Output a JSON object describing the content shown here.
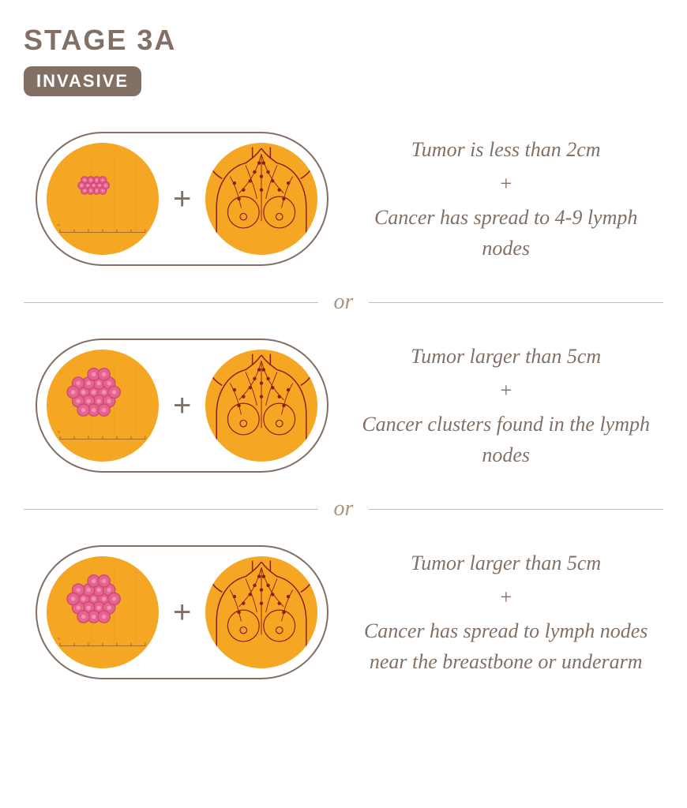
{
  "colors": {
    "title": "#827065",
    "badge_bg": "#827065",
    "badge_text": "#ffffff",
    "capsule_border": "#827065",
    "circle_bg": "#f5a623",
    "circle_bg_alt": "#f5a623",
    "cell_fill": "#e8648f",
    "cell_stroke": "#c94876",
    "anatomy_stroke": "#8a1e1e",
    "plus": "#827065",
    "desc_text": "#827065",
    "separator_line": "#c9bdb2",
    "or_text": "#a89582",
    "ruler": "#8a5a2a"
  },
  "header": {
    "title": "STAGE 3A",
    "title_fontsize": 36,
    "badge": "INVASIVE",
    "badge_fontsize": 22
  },
  "layout": {
    "circle_diameter": 142,
    "capsule_gap": 18,
    "plus_fontsize": 40,
    "desc_fontsize": 26,
    "or_fontsize": 28
  },
  "scenarios": [
    {
      "tumor_scale": 0.5,
      "text_line1": "Tumor is less than 2cm",
      "text_line2": "Cancer has spread to 4-9 lymph nodes"
    },
    {
      "tumor_scale": 0.85,
      "text_line1": "Tumor larger than 5cm",
      "text_line2": "Cancer clusters found in the lymph nodes"
    },
    {
      "tumor_scale": 0.85,
      "text_line1": "Tumor larger than 5cm",
      "text_line2": "Cancer has spread to lymph nodes near the breastbone or underarm"
    }
  ],
  "plus_symbol": "+",
  "separator_label": "or"
}
